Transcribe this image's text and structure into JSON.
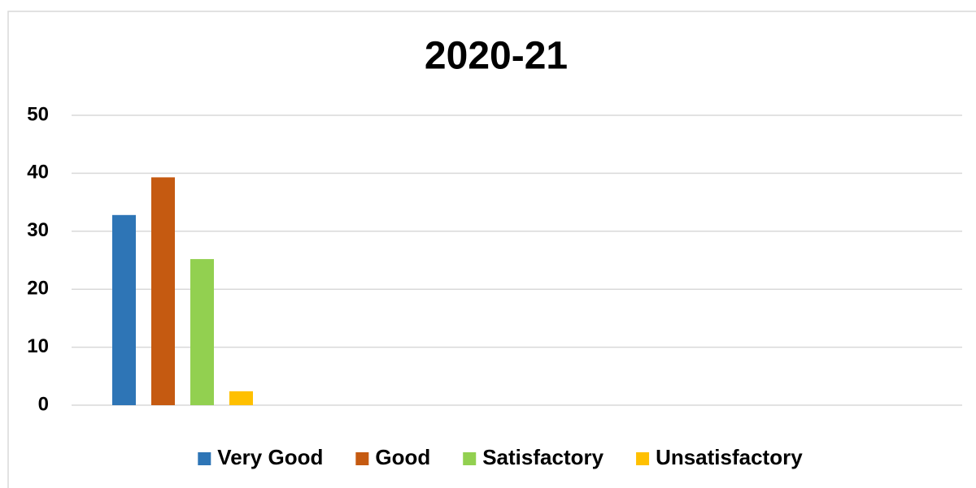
{
  "chart_data": {
    "type": "bar",
    "title": "2020-21",
    "categories": [
      null
    ],
    "series": [
      {
        "name": "Very Good",
        "color": "#2e75b6",
        "values": [
          32.8
        ]
      },
      {
        "name": "Good",
        "color": "#c55a11",
        "values": [
          39.3
        ]
      },
      {
        "name": "Satisfactory",
        "color": "#92d050",
        "values": [
          25.2
        ]
      },
      {
        "name": "Unsatisfactory",
        "color": "#ffc000",
        "values": [
          2.4
        ]
      }
    ],
    "ylim": [
      0,
      50
    ],
    "yticks": [
      0,
      10,
      20,
      30,
      40,
      50
    ],
    "grid": true,
    "legend": "bottom"
  }
}
